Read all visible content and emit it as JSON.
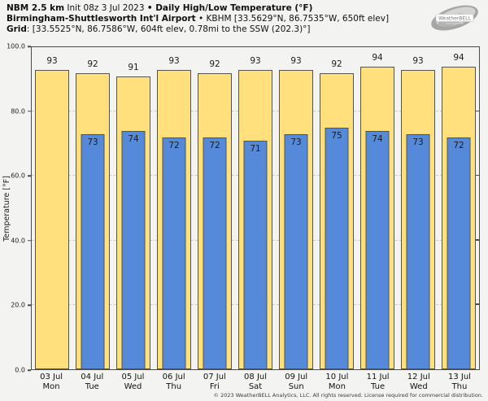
{
  "header": {
    "line1_bold": "NBM 2.5 km",
    "line1_normal": " Init 08z 3 Jul 2023 ",
    "line1_bold2": "• Daily High/Low Temperature (°F)",
    "line2_bold": "Birmingham-Shuttlesworth Int'l Airport",
    "line2_normal": " • KBHM [33.5629°N, 86.7535°W, 650ft elev]",
    "line3_bold": "Grid",
    "line3_normal": ": [33.5525°N, 86.7586°W, 604ft elev, 0.78mi to the SSW (202.3)°]"
  },
  "logo": {
    "icon": "weatherbell-swirl-logo",
    "text": "WeatherBELL"
  },
  "footer": {
    "copyright": "© 2023 WeatherBELL Analytics, LLC. All rights reserved. License required for commercial distribution."
  },
  "colors": {
    "page_background": "#f3f3f2",
    "high_bar": "#ffe07c",
    "low_bar": "#5589d9",
    "bar_border": "#55544c",
    "plot_frame": "#4b4b4b",
    "gridline": "#c9c9c9"
  },
  "chart_data": {
    "type": "bar",
    "title": "Daily High/Low Temperature (°F)",
    "xlabel": "",
    "ylabel": "Temperature [°F]",
    "ylim": [
      0,
      100
    ],
    "yticks": [
      0,
      20,
      40,
      60,
      80,
      100
    ],
    "ytick_labels": [
      "0.0",
      "20.0",
      "40.0",
      "60.0",
      "80.0",
      "100.0"
    ],
    "grid": "horizontal dashed at 20/40/60/80",
    "legend": "none",
    "categories": [
      {
        "label": "03 Jul",
        "sub": "Mon"
      },
      {
        "label": "04 Jul",
        "sub": "Tue"
      },
      {
        "label": "05 Jul",
        "sub": "Wed"
      },
      {
        "label": "06 Jul",
        "sub": "Thu"
      },
      {
        "label": "07 Jul",
        "sub": "Fri"
      },
      {
        "label": "08 Jul",
        "sub": "Sat"
      },
      {
        "label": "09 Jul",
        "sub": "Sun"
      },
      {
        "label": "10 Jul",
        "sub": "Mon"
      },
      {
        "label": "11 Jul",
        "sub": "Tue"
      },
      {
        "label": "12 Jul",
        "sub": "Wed"
      },
      {
        "label": "13 Jul",
        "sub": "Thu"
      }
    ],
    "series": [
      {
        "name": "Daily High",
        "color": "#ffe07c",
        "values": [
          93,
          92,
          91,
          93,
          92,
          93,
          93,
          92,
          94,
          93,
          94
        ]
      },
      {
        "name": "Daily Low",
        "color": "#5589d9",
        "values": [
          null,
          73,
          74,
          72,
          72,
          71,
          73,
          75,
          74,
          73,
          72
        ]
      }
    ]
  }
}
